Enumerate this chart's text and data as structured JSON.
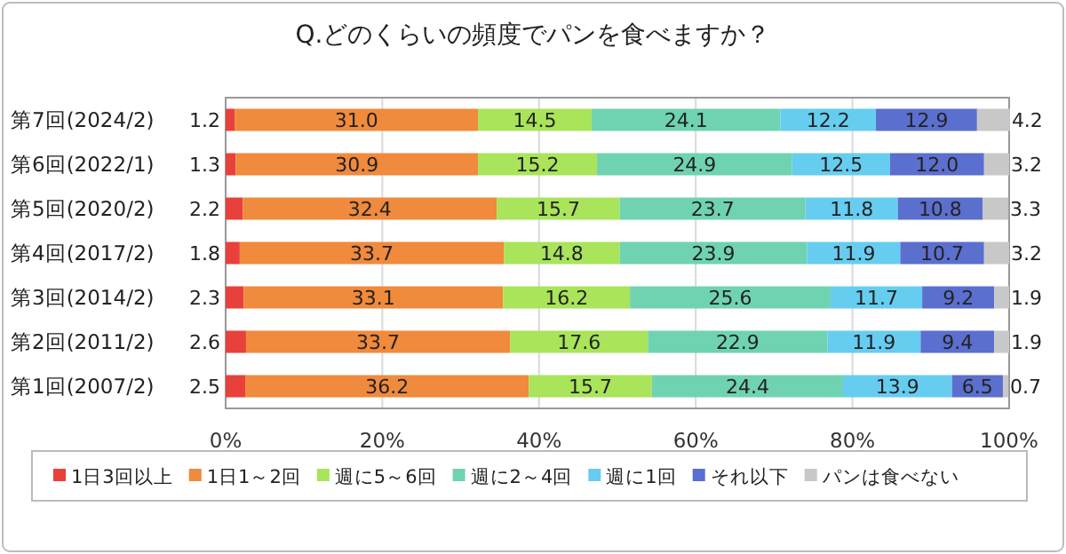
{
  "chart_data": {
    "type": "bar",
    "orientation": "horizontal",
    "stacked": true,
    "title": "Q.どのくらいの頻度でパンを食べますか？",
    "categories": [
      "第7回(2024/2)",
      "第6回(2022/1)",
      "第5回(2020/2)",
      "第4回(2017/2)",
      "第3回(2014/2)",
      "第2回(2011/2)",
      "第1回(2007/2)"
    ],
    "series": [
      {
        "name": "1日3回以上",
        "color": "#e8413b",
        "values": [
          1.2,
          1.3,
          2.2,
          1.8,
          2.3,
          2.6,
          2.5
        ],
        "value_labels": [
          "1.2",
          "1.3",
          "2.2",
          "1.8",
          "2.3",
          "2.6",
          "2.5"
        ]
      },
      {
        "name": "1日1～2回",
        "color": "#f08a3c",
        "values": [
          31.0,
          30.9,
          32.4,
          33.7,
          33.1,
          33.7,
          36.2
        ],
        "value_labels": [
          "31.0",
          "30.9",
          "32.4",
          "33.7",
          "33.1",
          "33.7",
          "36.2"
        ]
      },
      {
        "name": "週に5～6回",
        "color": "#a9e45a",
        "values": [
          14.5,
          15.2,
          15.7,
          14.8,
          16.2,
          17.6,
          15.7
        ],
        "value_labels": [
          "14.5",
          "15.2",
          "15.7",
          "14.8",
          "16.2",
          "17.6",
          "15.7"
        ]
      },
      {
        "name": "週に2～4回",
        "color": "#6fd3b2",
        "values": [
          24.1,
          24.9,
          23.7,
          23.9,
          25.6,
          22.9,
          24.4
        ],
        "value_labels": [
          "24.1",
          "24.9",
          "23.7",
          "23.9",
          "25.6",
          "22.9",
          "24.4"
        ]
      },
      {
        "name": "週に1回",
        "color": "#66cdf0",
        "values": [
          12.2,
          12.5,
          11.8,
          11.9,
          11.7,
          11.9,
          13.9
        ],
        "value_labels": [
          "12.2",
          "12.5",
          "11.8",
          "11.9",
          "11.7",
          "11.9",
          "13.9"
        ]
      },
      {
        "name": "それ以下",
        "color": "#5b6fcf",
        "values": [
          12.9,
          12.0,
          10.8,
          10.7,
          9.2,
          9.4,
          6.5
        ],
        "value_labels": [
          "12.9",
          "12.0",
          "10.8",
          "10.7",
          "9.2",
          "9.4",
          "6.5"
        ]
      },
      {
        "name": "パンは食べない",
        "color": "#c8c8c8",
        "values": [
          4.2,
          3.2,
          3.3,
          3.2,
          1.9,
          1.9,
          0.7
        ],
        "value_labels": [
          "4.2",
          "3.2",
          "3.3",
          "3.2",
          "1.9",
          "1.9",
          "0.7"
        ]
      }
    ],
    "xlim": [
      0,
      100
    ],
    "xticks": [
      {
        "value": 0,
        "label": "0%"
      },
      {
        "value": 20,
        "label": "20%"
      },
      {
        "value": 40,
        "label": "40%"
      },
      {
        "value": 60,
        "label": "60%"
      },
      {
        "value": 80,
        "label": "80%"
      },
      {
        "value": 100,
        "label": "100%"
      }
    ],
    "grid": "x",
    "legend": "bottom"
  }
}
